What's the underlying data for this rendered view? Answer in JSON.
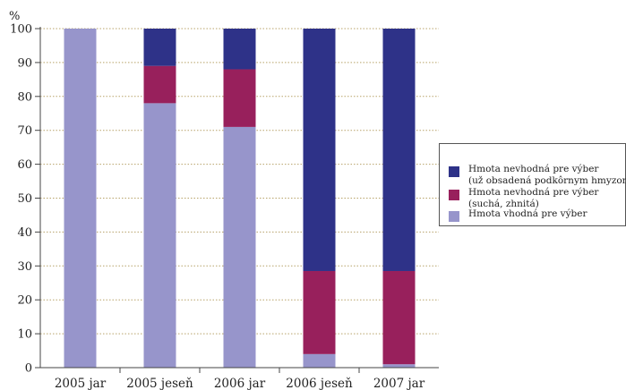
{
  "chart_data": {
    "type": "bar",
    "stacked": true,
    "unit_label": "%",
    "categories": [
      "2005 jar",
      "2005 jeseň",
      "2006 jar",
      "2006 jeseň",
      "2007 jar"
    ],
    "ylim": [
      0,
      100
    ],
    "yticks": [
      0,
      10,
      20,
      30,
      40,
      50,
      60,
      70,
      80,
      90,
      100
    ],
    "grid": "horizontal dotted",
    "legend_position": "right",
    "series": [
      {
        "name": "Hmota vhodná pre výber",
        "color": "#9795cb",
        "values": [
          100,
          78,
          71,
          4,
          1
        ]
      },
      {
        "name": "Hmota nevhodná pre výber (suchá, zhnitá)",
        "color": "#98205c",
        "values": [
          0,
          11,
          17,
          24.5,
          27.5
        ]
      },
      {
        "name": "Hmota nevhodná pre výber (už obsadená podkôrnym hmyzom)",
        "color": "#2e3288",
        "values": [
          0,
          11,
          12,
          71.5,
          71.5
        ]
      }
    ],
    "legend": [
      {
        "line1": "Hmota nevhodná pre výber",
        "line2": "(už obsadená podkôrnym hmyzom",
        "color": "#2e3288"
      },
      {
        "line1": "Hmota nevhodná pre výber",
        "line2": "(suchá, zhnitá)",
        "color": "#98205c"
      },
      {
        "line1": "Hmota vhodná pre výber",
        "line2": "",
        "color": "#9795cb"
      }
    ]
  }
}
